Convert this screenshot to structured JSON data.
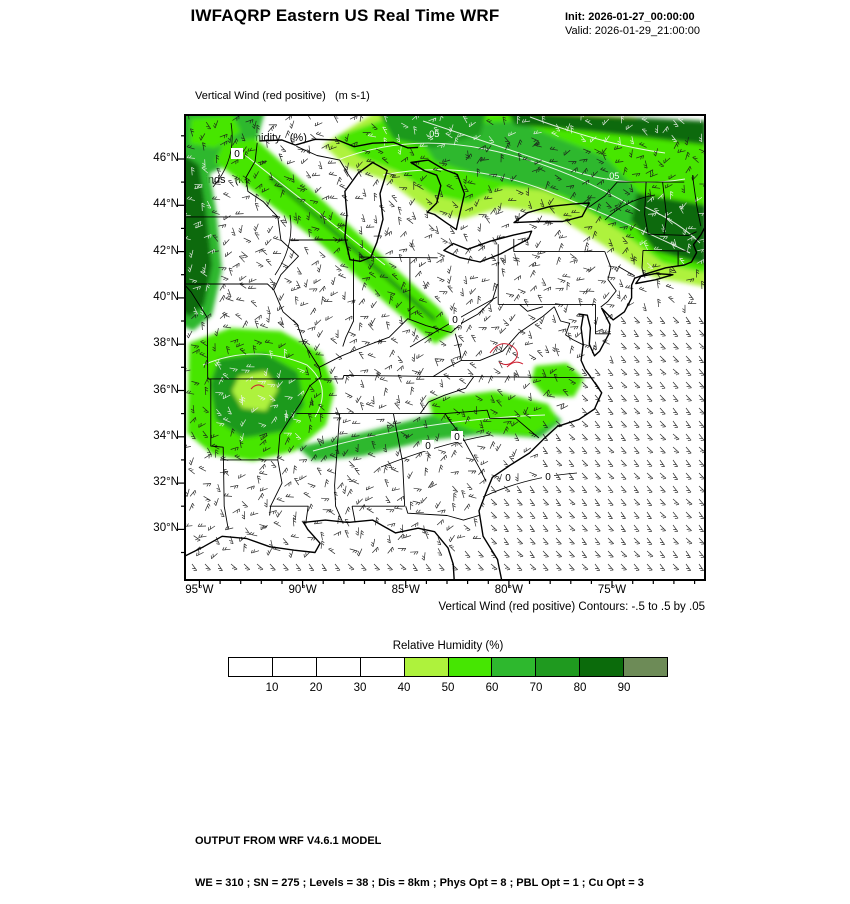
{
  "header": {
    "title": "IWFAQRP Eastern US Real Time WRF",
    "init_label": "Init: 2026-01-27_00:00:00",
    "valid_label": "Valid: 2026-01-29_21:00:00"
  },
  "legend": {
    "vertical_wind": "Vertical Wind (red positive)   (m s-1)",
    "relative_humidity": "Relative Humidity   (%)",
    "winds": "Winds   (kts)"
  },
  "map": {
    "lat_ticks": [
      "46°N",
      "44°N",
      "42°N",
      "40°N",
      "38°N",
      "36°N",
      "34°N",
      "32°N",
      "30°N"
    ],
    "lon_ticks": [
      "95°W",
      "90°W",
      "85°W",
      "80°W",
      "75°W"
    ],
    "contour_labels": [
      "0",
      "0",
      "0",
      "0",
      "0",
      "0"
    ],
    "white_contour_labels": [
      ".05",
      ".05"
    ],
    "contour_note": "Vertical Wind (red positive) Contours: -.5 to .5 by .05"
  },
  "colorbar": {
    "title": "Relative Humidity  (%)",
    "tick_labels": [
      "10",
      "20",
      "30",
      "40",
      "50",
      "60",
      "70",
      "80",
      "90"
    ],
    "box_colors": [
      "#ffffff",
      "#ffffff",
      "#ffffff",
      "#ffffff",
      "#aef23c",
      "#46e602",
      "#2eb82e",
      "#1f9a1f",
      "#0b6b0b",
      "#6d8b57"
    ]
  },
  "footer": {
    "line1": "OUTPUT FROM WRF V4.6.1 MODEL",
    "line2": "WE = 310 ; SN = 275 ; Levels = 38 ; Dis = 8km ; Phys Opt = 8 ; PBL Opt = 1 ; Cu Opt = 3"
  }
}
